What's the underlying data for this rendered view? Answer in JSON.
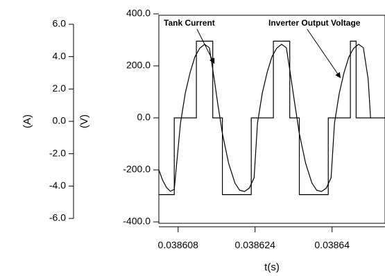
{
  "chart_data": {
    "type": "line",
    "title": "",
    "xlabel": "t(s)",
    "ylabel_left": "(A)",
    "ylabel_right": "(V)",
    "xlim": [
      0.038604,
      0.038651
    ],
    "ylim_current": [
      -6.0,
      6.0
    ],
    "ylim_voltage": [
      -400.0,
      400.0
    ],
    "x_ticks": [
      0.038608,
      0.038624,
      0.03864
    ],
    "x_tick_labels": [
      "0.038608",
      "0.038624",
      "0.03864"
    ],
    "current_ticks": [
      6.0,
      4.0,
      2.0,
      0.0,
      -2.0,
      -4.0,
      -6.0
    ],
    "current_tick_labels": [
      "6.0",
      "4.0",
      "2.0",
      "0.0",
      "-2.0",
      "-4.0",
      "-6.0"
    ],
    "voltage_ticks": [
      400.0,
      200.0,
      0.0,
      -200.0,
      -400.0
    ],
    "voltage_tick_labels": [
      "400.0",
      "200.0",
      "0.0",
      "-200.0",
      "-400.0"
    ],
    "grid": false,
    "annotations": [
      {
        "text": "Tank Current",
        "target_series": "Tank Current",
        "target_x": 0.0386155,
        "target_y": 210.0
      },
      {
        "text": "Inverter Output Voltage",
        "target_series": "Inverter Output Voltage",
        "target_x": 0.0386417,
        "target_y": 155.0
      }
    ],
    "series": [
      {
        "name": "Inverter Output Voltage",
        "axis": "voltage",
        "x": [
          0.038604,
          0.0386052,
          0.0386052,
          0.0386072,
          0.0386072,
          0.0386092,
          0.0386092,
          0.0386118,
          0.0386118,
          0.0386132,
          0.0386132,
          0.0386152,
          0.0386152,
          0.0386172,
          0.0386172,
          0.0386212,
          0.0386212,
          0.0386232,
          0.0386232,
          0.0386252,
          0.0386252,
          0.0386278,
          0.0386278,
          0.0386292,
          0.0386292,
          0.0386312,
          0.0386312,
          0.0386332,
          0.0386332,
          0.0386372,
          0.0386372,
          0.0386392,
          0.0386392,
          0.0386412,
          0.0386412,
          0.0386438,
          0.0386438,
          0.038645,
          0.038645,
          0.038651
        ],
        "y": [
          -295,
          -295,
          -295,
          -295,
          0,
          0,
          0,
          0,
          295,
          295,
          295,
          295,
          0,
          0,
          -295,
          -295,
          -295,
          -295,
          0,
          0,
          0,
          0,
          295,
          295,
          295,
          295,
          0,
          0,
          -295,
          -295,
          -295,
          -295,
          0,
          0,
          0,
          0,
          295,
          295,
          0,
          0
        ]
      },
      {
        "name": "Tank Current",
        "axis": "voltage",
        "x": [
          0.038604,
          0.0386048,
          0.0386056,
          0.0386064,
          0.0386072,
          0.0386085,
          0.0386095,
          0.0386105,
          0.0386115,
          0.0386125,
          0.0386135,
          0.0386145,
          0.0386155,
          0.0386162,
          0.0386172,
          0.0386185,
          0.0386198,
          0.0386208,
          0.0386218,
          0.0386228,
          0.0386238,
          0.0386245,
          0.0386255,
          0.0386265,
          0.0386275,
          0.0386285,
          0.0386295,
          0.0386305,
          0.0386315,
          0.0386322,
          0.0386332,
          0.0386345,
          0.0386358,
          0.0386368,
          0.0386378,
          0.0386388,
          0.0386398,
          0.0386405,
          0.0386415,
          0.0386425,
          0.0386435,
          0.0386445,
          0.0386455,
          0.0386465,
          0.0386475,
          0.038648
        ],
        "y": [
          -200,
          -240,
          -268,
          -282,
          -275,
          -20,
          95,
          175,
          235,
          268,
          283,
          270,
          150,
          60,
          -60,
          -175,
          -250,
          -278,
          -283,
          -270,
          -230,
          -20,
          95,
          175,
          235,
          268,
          283,
          270,
          150,
          60,
          -60,
          -175,
          -250,
          -278,
          -283,
          -270,
          -230,
          -20,
          95,
          175,
          235,
          268,
          283,
          270,
          150,
          0
        ]
      }
    ]
  }
}
